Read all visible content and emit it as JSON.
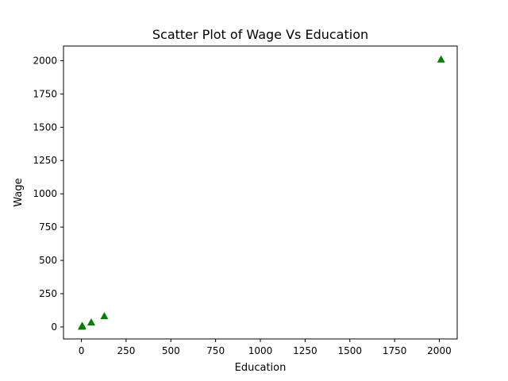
{
  "chart_data": {
    "type": "scatter",
    "title": "Scatter Plot of Wage Vs Education",
    "xlabel": "Education",
    "ylabel": "Wage",
    "xlim": [
      -100,
      2100
    ],
    "ylim": [
      -90,
      2110
    ],
    "xticks": [
      0,
      250,
      500,
      750,
      1000,
      1250,
      1500,
      1750,
      2000
    ],
    "yticks": [
      0,
      250,
      500,
      750,
      1000,
      1250,
      1500,
      1750,
      2000
    ],
    "grid": false,
    "marker": "triangle-up",
    "color": "#008000",
    "series": [
      {
        "points": [
          {
            "x": 2,
            "y": 3
          },
          {
            "x": 3,
            "y": 6
          },
          {
            "x": 5,
            "y": 9
          },
          {
            "x": 55,
            "y": 35
          },
          {
            "x": 128,
            "y": 82
          },
          {
            "x": 2010,
            "y": 2010
          }
        ]
      }
    ]
  }
}
